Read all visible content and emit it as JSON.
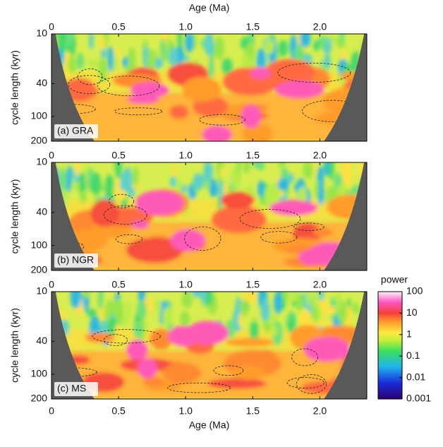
{
  "chart_data": [
    {
      "type": "wavelet",
      "panel_label": "(a) GRA",
      "xlabel": "Age (Ma)",
      "ylabel": "cycle length (kyr)",
      "xlim": [
        0,
        2.35
      ],
      "xticks": [
        0,
        0.5,
        {
          "value": 1,
          "label": "1.0"
        },
        1.5,
        {
          "value": 2,
          "label": "2.0"
        }
      ],
      "ylim": [
        10,
        200
      ],
      "yticks": [
        10,
        40,
        100,
        200
      ],
      "log_y": true
    },
    {
      "type": "wavelet",
      "panel_label": "(b) NGR",
      "ylabel": "cycle length (kyr)",
      "xlim": [
        0,
        2.35
      ],
      "xticks": [
        0,
        0.5,
        {
          "value": 1,
          "label": "1.0"
        },
        1.5,
        {
          "value": 2,
          "label": "2.0"
        }
      ],
      "ylim": [
        10,
        200
      ],
      "yticks": [
        10,
        40,
        100,
        200
      ],
      "log_y": true
    },
    {
      "type": "wavelet",
      "panel_label": "(c) MS",
      "xlabel": "Age (Ma)",
      "ylabel": "cycle length (kyr)",
      "xlim": [
        0,
        2.35
      ],
      "xticks": [
        0,
        0.5,
        {
          "value": 1,
          "label": "1.0"
        },
        1.5,
        {
          "value": 2,
          "label": "2.0"
        }
      ],
      "ylim": [
        10,
        200
      ],
      "yticks": [
        10,
        40,
        100,
        200
      ],
      "log_y": true,
      "colorbar": {
        "title": "power",
        "lim": [
          0.001,
          100
        ],
        "ticks": [
          100,
          10,
          1,
          0.1,
          0.01,
          0.001
        ],
        "log": true
      }
    }
  ]
}
